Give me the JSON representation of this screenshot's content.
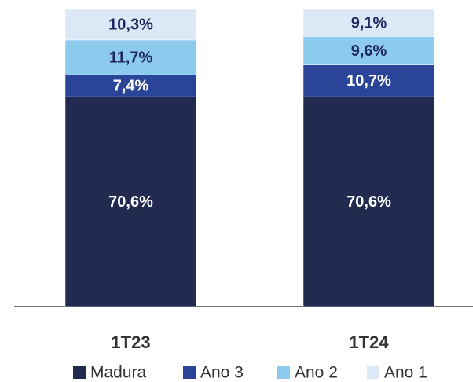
{
  "chart_data": {
    "type": "stacked_bar",
    "categories": [
      "1T23",
      "1T24"
    ],
    "series": [
      {
        "name": "Madura",
        "color": "#222a50",
        "values": [
          70.6,
          70.6
        ],
        "value_labels": [
          "70,6%",
          "70,6%"
        ]
      },
      {
        "name": "Ano 3",
        "color": "#2a4598",
        "values": [
          7.4,
          10.7
        ],
        "value_labels": [
          "7,4%",
          "10,7%"
        ]
      },
      {
        "name": "Ano 2",
        "color": "#8ccbee",
        "values": [
          11.7,
          9.6
        ],
        "value_labels": [
          "11,7%",
          "9,6%"
        ]
      },
      {
        "name": "Ano 1",
        "color": "#dde8f6",
        "values": [
          10.3,
          9.1
        ],
        "value_labels": [
          "10,3%",
          "9,1%"
        ]
      }
    ],
    "legend": "bottom"
  }
}
